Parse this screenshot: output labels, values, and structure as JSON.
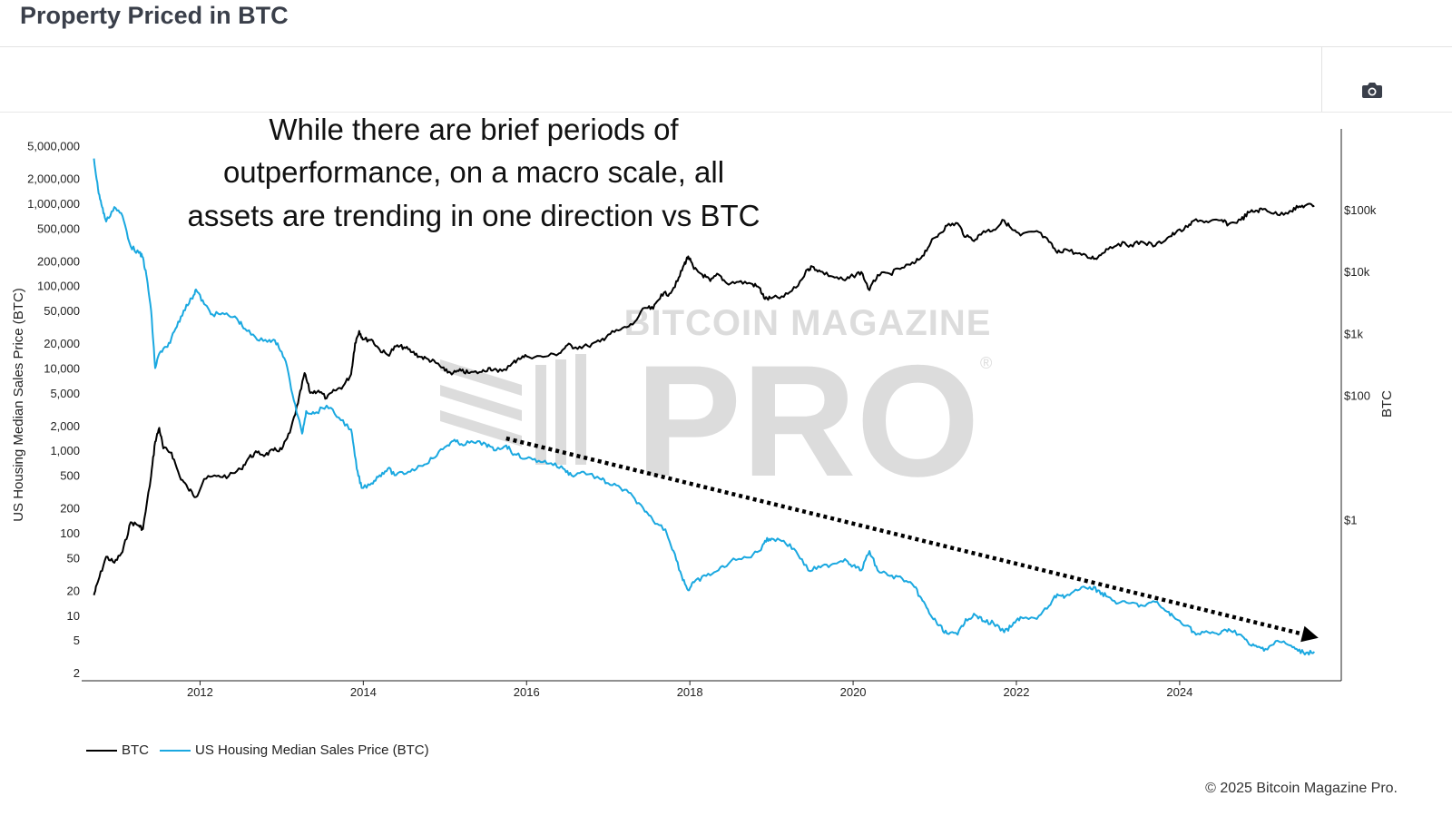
{
  "header": {
    "title": "Property Priced in BTC"
  },
  "toolbar": {
    "camera_icon": "camera-icon"
  },
  "annotation": {
    "lines": [
      "While there are brief periods of",
      "outperformance, on a macro scale, all",
      "assets are trending in one direction vs BTC"
    ]
  },
  "watermark": {
    "top": "BITCOIN MAGAZINE",
    "main": "PRO",
    "mark": "®"
  },
  "legend": {
    "btc_label": "BTC",
    "housing_label": "US Housing Median Sales Price (BTC)"
  },
  "footer": {
    "copyright": "© 2025 Bitcoin Magazine Pro."
  },
  "colors": {
    "btc": "#000000",
    "housing": "#1aa8e0",
    "arrow": "#000000"
  },
  "chart_data": {
    "type": "line",
    "title": "Property Priced in BTC",
    "ylabel_left": "US Housing Median Sales Price (BTC)",
    "ylabel_right": "BTC",
    "xlabel": "",
    "y_scale": "log",
    "x_ticks": [
      "2012",
      "2014",
      "2016",
      "2018",
      "2020",
      "2022",
      "2024"
    ],
    "y_left_ticks": [
      {
        "v": 5000000,
        "label": "5,000,000"
      },
      {
        "v": 2000000,
        "label": "2,000,000"
      },
      {
        "v": 1000000,
        "label": "1,000,000"
      },
      {
        "v": 500000,
        "label": "500,000"
      },
      {
        "v": 200000,
        "label": "200,000"
      },
      {
        "v": 100000,
        "label": "100,000"
      },
      {
        "v": 50000,
        "label": "50,000"
      },
      {
        "v": 20000,
        "label": "20,000"
      },
      {
        "v": 10000,
        "label": "10,000"
      },
      {
        "v": 5000,
        "label": "5,000"
      },
      {
        "v": 2000,
        "label": "2,000"
      },
      {
        "v": 1000,
        "label": "1,000"
      },
      {
        "v": 500,
        "label": "500"
      },
      {
        "v": 200,
        "label": "200"
      },
      {
        "v": 100,
        "label": "100"
      },
      {
        "v": 50,
        "label": "50"
      },
      {
        "v": 20,
        "label": "20"
      },
      {
        "v": 10,
        "label": "10"
      },
      {
        "v": 5,
        "label": "5"
      },
      {
        "v": 2,
        "label": "2"
      }
    ],
    "y_right_ticks": [
      {
        "v": 100000,
        "label": "$100k"
      },
      {
        "v": 10000,
        "label": "$10k"
      },
      {
        "v": 1000,
        "label": "$1k"
      },
      {
        "v": 100,
        "label": "$100"
      },
      {
        "v": 1,
        "label": "$1"
      }
    ],
    "y_left_range": [
      1.6,
      8000000
    ],
    "y_right_range": [
      0.0025,
      2000000
    ],
    "grid": false,
    "legend_position": "bottom-left",
    "series": [
      {
        "name": "BTC",
        "axis": "right",
        "color": "#000000",
        "points": [
          [
            2010.7,
            0.06
          ],
          [
            2010.75,
            0.1
          ],
          [
            2010.85,
            0.25
          ],
          [
            2010.95,
            0.2
          ],
          [
            2011.05,
            0.3
          ],
          [
            2011.15,
            0.9
          ],
          [
            2011.25,
            0.8
          ],
          [
            2011.3,
            0.7
          ],
          [
            2011.4,
            5
          ],
          [
            2011.45,
            18
          ],
          [
            2011.5,
            30
          ],
          [
            2011.55,
            14
          ],
          [
            2011.65,
            12
          ],
          [
            2011.75,
            5
          ],
          [
            2011.85,
            3.2
          ],
          [
            2011.95,
            2.3
          ],
          [
            2012.05,
            4.5
          ],
          [
            2012.2,
            5
          ],
          [
            2012.35,
            5
          ],
          [
            2012.5,
            6.5
          ],
          [
            2012.6,
            10
          ],
          [
            2012.7,
            12
          ],
          [
            2012.8,
            11
          ],
          [
            2012.9,
            13
          ],
          [
            2013.0,
            13.5
          ],
          [
            2013.1,
            25
          ],
          [
            2013.2,
            75
          ],
          [
            2013.28,
            230
          ],
          [
            2013.35,
            110
          ],
          [
            2013.45,
            120
          ],
          [
            2013.55,
            90
          ],
          [
            2013.65,
            120
          ],
          [
            2013.75,
            140
          ],
          [
            2013.85,
            220
          ],
          [
            2013.9,
            700
          ],
          [
            2013.95,
            1100
          ],
          [
            2014.0,
            800
          ],
          [
            2014.1,
            800
          ],
          [
            2014.2,
            550
          ],
          [
            2014.3,
            450
          ],
          [
            2014.4,
            620
          ],
          [
            2014.5,
            600
          ],
          [
            2014.6,
            500
          ],
          [
            2014.7,
            420
          ],
          [
            2014.8,
            380
          ],
          [
            2014.9,
            330
          ],
          [
            2015.0,
            250
          ],
          [
            2015.1,
            230
          ],
          [
            2015.2,
            250
          ],
          [
            2015.3,
            230
          ],
          [
            2015.45,
            240
          ],
          [
            2015.55,
            280
          ],
          [
            2015.65,
            240
          ],
          [
            2015.8,
            300
          ],
          [
            2015.9,
            400
          ],
          [
            2016.0,
            430
          ],
          [
            2016.2,
            420
          ],
          [
            2016.4,
            480
          ],
          [
            2016.5,
            650
          ],
          [
            2016.6,
            600
          ],
          [
            2016.75,
            630
          ],
          [
            2016.9,
            740
          ],
          [
            2017.0,
            960
          ],
          [
            2017.15,
            1150
          ],
          [
            2017.3,
            1400
          ],
          [
            2017.45,
            2600
          ],
          [
            2017.55,
            2500
          ],
          [
            2017.65,
            4300
          ],
          [
            2017.75,
            4400
          ],
          [
            2017.85,
            7000
          ],
          [
            2017.93,
            13000
          ],
          [
            2017.98,
            17500
          ],
          [
            2018.05,
            11000
          ],
          [
            2018.15,
            9000
          ],
          [
            2018.25,
            7000
          ],
          [
            2018.35,
            9000
          ],
          [
            2018.45,
            6500
          ],
          [
            2018.6,
            6800
          ],
          [
            2018.75,
            6400
          ],
          [
            2018.85,
            5500
          ],
          [
            2018.92,
            3600
          ],
          [
            2019.0,
            3700
          ],
          [
            2019.15,
            3900
          ],
          [
            2019.3,
            5500
          ],
          [
            2019.45,
            11000
          ],
          [
            2019.5,
            12000
          ],
          [
            2019.6,
            10000
          ],
          [
            2019.75,
            8300
          ],
          [
            2019.9,
            7200
          ],
          [
            2020.0,
            8500
          ],
          [
            2020.1,
            9800
          ],
          [
            2020.2,
            5000
          ],
          [
            2020.3,
            8800
          ],
          [
            2020.45,
            9200
          ],
          [
            2020.6,
            11500
          ],
          [
            2020.75,
            13500
          ],
          [
            2020.85,
            18000
          ],
          [
            2020.95,
            29000
          ],
          [
            2021.05,
            40000
          ],
          [
            2021.15,
            55000
          ],
          [
            2021.28,
            60000
          ],
          [
            2021.38,
            36000
          ],
          [
            2021.5,
            33000
          ],
          [
            2021.6,
            45000
          ],
          [
            2021.72,
            47000
          ],
          [
            2021.85,
            67000
          ],
          [
            2021.95,
            47000
          ],
          [
            2022.05,
            38000
          ],
          [
            2022.25,
            45000
          ],
          [
            2022.4,
            30000
          ],
          [
            2022.5,
            20000
          ],
          [
            2022.6,
            23000
          ],
          [
            2022.75,
            19500
          ],
          [
            2022.9,
            16500
          ],
          [
            2023.0,
            17000
          ],
          [
            2023.1,
            23000
          ],
          [
            2023.25,
            28000
          ],
          [
            2023.4,
            27000
          ],
          [
            2023.55,
            30000
          ],
          [
            2023.7,
            26000
          ],
          [
            2023.85,
            35000
          ],
          [
            2023.95,
            42000
          ],
          [
            2024.1,
            52000
          ],
          [
            2024.2,
            70000
          ],
          [
            2024.35,
            62000
          ],
          [
            2024.5,
            67000
          ],
          [
            2024.6,
            58000
          ],
          [
            2024.75,
            68000
          ],
          [
            2024.85,
            90000
          ],
          [
            2024.95,
            96000
          ],
          [
            2025.05,
            102000
          ],
          [
            2025.2,
            82000
          ],
          [
            2025.35,
            95000
          ],
          [
            2025.45,
            108000
          ],
          [
            2025.55,
            118000
          ],
          [
            2025.65,
            115000
          ]
        ]
      },
      {
        "name": "US Housing Median Sales Price (BTC)",
        "axis": "left",
        "color": "#1aa8e0",
        "points": [
          [
            2010.7,
            3500000
          ],
          [
            2010.75,
            1500000
          ],
          [
            2010.8,
            900000
          ],
          [
            2010.85,
            600000
          ],
          [
            2010.95,
            900000
          ],
          [
            2011.05,
            700000
          ],
          [
            2011.15,
            300000
          ],
          [
            2011.25,
            250000
          ],
          [
            2011.3,
            220000
          ],
          [
            2011.35,
            120000
          ],
          [
            2011.4,
            50000
          ],
          [
            2011.45,
            10000
          ],
          [
            2011.5,
            15000
          ],
          [
            2011.6,
            18000
          ],
          [
            2011.7,
            30000
          ],
          [
            2011.8,
            50000
          ],
          [
            2011.9,
            70000
          ],
          [
            2011.95,
            90000
          ],
          [
            2012.05,
            60000
          ],
          [
            2012.15,
            45000
          ],
          [
            2012.3,
            45000
          ],
          [
            2012.45,
            40000
          ],
          [
            2012.55,
            30000
          ],
          [
            2012.7,
            22000
          ],
          [
            2012.85,
            22000
          ],
          [
            2012.95,
            20000
          ],
          [
            2013.05,
            12000
          ],
          [
            2013.15,
            4000
          ],
          [
            2013.25,
            1600
          ],
          [
            2013.3,
            3000
          ],
          [
            2013.4,
            2800
          ],
          [
            2013.55,
            3500
          ],
          [
            2013.7,
            2500
          ],
          [
            2013.85,
            1800
          ],
          [
            2013.92,
            600
          ],
          [
            2013.98,
            350
          ],
          [
            2014.1,
            400
          ],
          [
            2014.2,
            500
          ],
          [
            2014.3,
            600
          ],
          [
            2014.4,
            500
          ],
          [
            2014.55,
            550
          ],
          [
            2014.7,
            650
          ],
          [
            2014.85,
            800
          ],
          [
            2015.0,
            1100
          ],
          [
            2015.1,
            1300
          ],
          [
            2015.2,
            1200
          ],
          [
            2015.35,
            1250
          ],
          [
            2015.5,
            1200
          ],
          [
            2015.6,
            1000
          ],
          [
            2015.75,
            1150
          ],
          [
            2015.85,
            900
          ],
          [
            2016.0,
            800
          ],
          [
            2016.15,
            750
          ],
          [
            2016.3,
            700
          ],
          [
            2016.45,
            600
          ],
          [
            2016.55,
            500
          ],
          [
            2016.7,
            550
          ],
          [
            2016.9,
            450
          ],
          [
            2017.0,
            400
          ],
          [
            2017.15,
            350
          ],
          [
            2017.3,
            280
          ],
          [
            2017.45,
            180
          ],
          [
            2017.55,
            140
          ],
          [
            2017.7,
            110
          ],
          [
            2017.8,
            60
          ],
          [
            2017.9,
            30
          ],
          [
            2017.98,
            20
          ],
          [
            2018.05,
            25
          ],
          [
            2018.2,
            30
          ],
          [
            2018.35,
            35
          ],
          [
            2018.5,
            45
          ],
          [
            2018.7,
            50
          ],
          [
            2018.85,
            60
          ],
          [
            2018.92,
            80
          ],
          [
            2019.0,
            85
          ],
          [
            2019.15,
            80
          ],
          [
            2019.3,
            60
          ],
          [
            2019.45,
            35
          ],
          [
            2019.6,
            38
          ],
          [
            2019.75,
            42
          ],
          [
            2019.9,
            48
          ],
          [
            2020.0,
            40
          ],
          [
            2020.1,
            35
          ],
          [
            2020.2,
            60
          ],
          [
            2020.3,
            35
          ],
          [
            2020.45,
            30
          ],
          [
            2020.6,
            28
          ],
          [
            2020.75,
            22
          ],
          [
            2020.85,
            15
          ],
          [
            2020.95,
            10
          ],
          [
            2021.05,
            7.5
          ],
          [
            2021.15,
            6
          ],
          [
            2021.28,
            5.8
          ],
          [
            2021.38,
            9
          ],
          [
            2021.5,
            10
          ],
          [
            2021.6,
            8.5
          ],
          [
            2021.72,
            8
          ],
          [
            2021.85,
            6.2
          ],
          [
            2021.95,
            7.5
          ],
          [
            2022.05,
            9.5
          ],
          [
            2022.25,
            9
          ],
          [
            2022.4,
            13
          ],
          [
            2022.5,
            18
          ],
          [
            2022.6,
            17
          ],
          [
            2022.75,
            20
          ],
          [
            2022.9,
            22
          ],
          [
            2023.0,
            20
          ],
          [
            2023.1,
            17
          ],
          [
            2023.25,
            14
          ],
          [
            2023.4,
            14
          ],
          [
            2023.55,
            13
          ],
          [
            2023.7,
            14.5
          ],
          [
            2023.85,
            11
          ],
          [
            2023.95,
            9
          ],
          [
            2024.1,
            7.5
          ],
          [
            2024.2,
            5.8
          ],
          [
            2024.35,
            6.2
          ],
          [
            2024.5,
            6
          ],
          [
            2024.6,
            6.8
          ],
          [
            2024.75,
            5.8
          ],
          [
            2024.85,
            4.4
          ],
          [
            2024.95,
            4.1
          ],
          [
            2025.05,
            3.9
          ],
          [
            2025.2,
            4.9
          ],
          [
            2025.35,
            4.3
          ],
          [
            2025.45,
            3.7
          ],
          [
            2025.55,
            3.5
          ],
          [
            2025.65,
            3.6
          ]
        ]
      }
    ],
    "trend_arrow": {
      "from": [
        2015.75,
        1400
      ],
      "to": [
        2025.7,
        5.3
      ]
    }
  }
}
